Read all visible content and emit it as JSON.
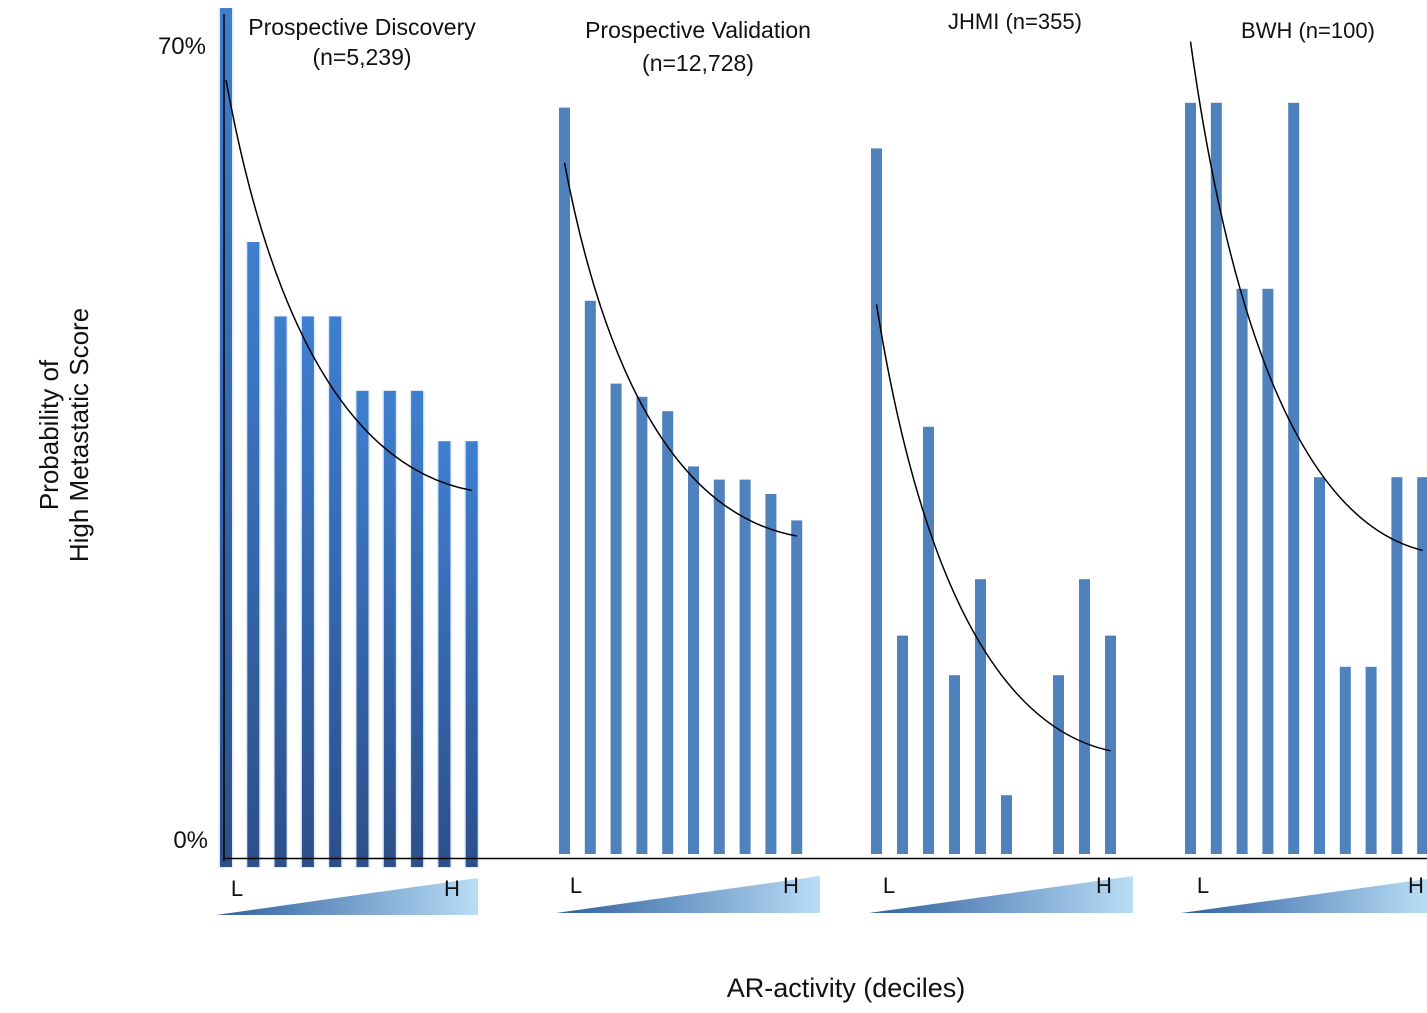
{
  "chart_data": {
    "type": "bar",
    "ylabel_lines": [
      "Probability of",
      "High Metastatic Score"
    ],
    "xlabel": "AR-activity (deciles)",
    "y_top_label": "70%",
    "y_bottom_label": "0%",
    "ylim": [
      0,
      70
    ],
    "bar_color": "#4f81bd",
    "gradient_colors": [
      "#2e5f9e",
      "#b9ddf6"
    ],
    "low_label": "L",
    "high_label": "H",
    "panels": [
      {
        "name_line1": "Prospective Discovery",
        "name_line2": "(n=5,239)",
        "values": [
          70.5,
          51,
          44.8,
          44.8,
          44.8,
          38.6,
          38.6,
          38.6,
          34.4,
          34.4
        ],
        "trend": [
          64.5,
          30.3
        ]
      },
      {
        "name_line1": "Prospective Validation",
        "name_line2": "(n=12,728)",
        "values": [
          62.2,
          46.1,
          39.2,
          38.1,
          36.9,
          32.3,
          31.2,
          31.2,
          30.0,
          27.8
        ],
        "trend": [
          57.6,
          26.5
        ]
      },
      {
        "name_line1": "JHMI (n=355)",
        "name_line2": "",
        "values": [
          58.8,
          18.2,
          35.6,
          14.9,
          22.9,
          4.9,
          0,
          14.9,
          22.9,
          18.2
        ],
        "trend": [
          45.8,
          8.6
        ]
      },
      {
        "name_line1": "BWH (n=100)",
        "name_line2": "",
        "values": [
          62.6,
          62.6,
          47.1,
          47.1,
          62.6,
          31.4,
          15.6,
          15.6,
          31.4,
          31.4
        ],
        "trend": [
          67.7,
          25.3
        ]
      }
    ]
  }
}
